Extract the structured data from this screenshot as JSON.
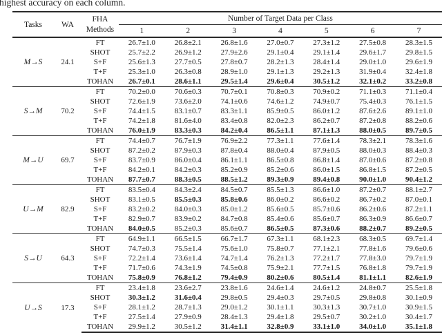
{
  "caption": "highest accuracy on each column.",
  "table": {
    "header": {
      "tasks": "Tasks",
      "wa": "WA",
      "methods_line1": "FHA",
      "methods_line2": "Methods",
      "span": "Number of Target Data per Class",
      "columns": [
        "1",
        "2",
        "3",
        "4",
        "5",
        "6",
        "7"
      ]
    },
    "groups": [
      {
        "task": "M→S",
        "wa": "24.1",
        "rows": [
          {
            "method": "FT",
            "values": [
              "26.7±1.0",
              "26.8±2.1",
              "26.8±1.6",
              "27.0±0.7",
              "27.3±1.2",
              "27.5±0.8",
              "28.3±1.5"
            ],
            "bold": [
              0,
              0,
              0,
              0,
              0,
              0,
              0
            ]
          },
          {
            "method": "SHOT",
            "values": [
              "25.7±2.2",
              "26.9±1.2",
              "27.9±2.6",
              "29.1±0.4",
              "29.1±1.4",
              "29.6±1.7",
              "29.8±1.5"
            ],
            "bold": [
              0,
              0,
              0,
              0,
              0,
              0,
              0
            ]
          },
          {
            "method": "S+F",
            "values": [
              "25.6±1.3",
              "27.7±0.5",
              "27.8±0.7",
              "28.2±1.3",
              "28.4±1.4",
              "29.0±1.0",
              "29.6±1.9"
            ],
            "bold": [
              0,
              0,
              0,
              0,
              0,
              0,
              0
            ]
          },
          {
            "method": "T+F",
            "values": [
              "25.3±1.0",
              "26.3±0.8",
              "28.9±1.0",
              "29.1±1.3",
              "29.2±1.3",
              "31.9±0.4",
              "32.4±1.8"
            ],
            "bold": [
              0,
              0,
              0,
              0,
              0,
              0,
              0
            ]
          },
          {
            "method": "TOHAN",
            "values": [
              "26.7±0.1",
              "28.6±1.1",
              "29.5±1.4",
              "29.6±0.4",
              "30.5±1.2",
              "32.1±0.2",
              "33.2±0.8"
            ],
            "bold": [
              1,
              1,
              1,
              1,
              1,
              1,
              1
            ]
          }
        ]
      },
      {
        "task": "S→M",
        "wa": "70.2",
        "rows": [
          {
            "method": "FT",
            "values": [
              "70.2±0.0",
              "70.6±0.3",
              "70.7±0.1",
              "70.8±0.3",
              "70.9±0.2",
              "71.1±0.3",
              "71.1±0.4"
            ],
            "bold": [
              0,
              0,
              0,
              0,
              0,
              0,
              0
            ]
          },
          {
            "method": "SHOT",
            "values": [
              "72.6±1.9",
              "73.6±2.0",
              "74.1±0.6",
              "74.6±1.2",
              "74.9±0.7",
              "75.4±0.3",
              "76.1±1.5"
            ],
            "bold": [
              0,
              0,
              0,
              0,
              0,
              0,
              0
            ]
          },
          {
            "method": "S+F",
            "values": [
              "74.4±1.5",
              "83.1±0.7",
              "83.3±1.1",
              "85.9±0.5",
              "86.0±1.2",
              "87.6±2.6",
              "89.1±1.0"
            ],
            "bold": [
              0,
              0,
              0,
              0,
              0,
              0,
              0
            ]
          },
          {
            "method": "T+F",
            "values": [
              "74.2±1.8",
              "81.6±4.0",
              "83.4±0.8",
              "82.0±2.3",
              "86.2±0.7",
              "87.2±0.8",
              "88.2±0.6"
            ],
            "bold": [
              0,
              0,
              0,
              0,
              0,
              0,
              0
            ]
          },
          {
            "method": "TOHAN",
            "values": [
              "76.0±1.9",
              "83.3±0.3",
              "84.2±0.4",
              "86.5±1.1",
              "87.1±1.3",
              "88.0±0.5",
              "89.7±0.5"
            ],
            "bold": [
              1,
              1,
              1,
              1,
              1,
              1,
              1
            ]
          }
        ]
      },
      {
        "task": "M→U",
        "wa": "69.7",
        "rows": [
          {
            "method": "FT",
            "values": [
              "74.4±0.7",
              "76.7±1.9",
              "76.9±2.2",
              "77.3±1.1",
              "77.6±1.4",
              "78.3±2.1",
              "78.3±1.6"
            ],
            "bold": [
              0,
              0,
              0,
              0,
              0,
              0,
              0
            ]
          },
          {
            "method": "SHOT",
            "values": [
              "87.2±0.2",
              "87.9±0.3",
              "87.8±0.4",
              "88.0±0.4",
              "87.9±0.5",
              "88.0±0.3",
              "88.4±0.3"
            ],
            "bold": [
              0,
              0,
              0,
              0,
              0,
              0,
              0
            ]
          },
          {
            "method": "S+F",
            "values": [
              "83.7±0.9",
              "86.0±0.4",
              "86.1±1.1",
              "86.5±0.8",
              "86.8±1.4",
              "87.0±0.6",
              "87.2±0.8"
            ],
            "bold": [
              0,
              0,
              0,
              0,
              0,
              0,
              0
            ]
          },
          {
            "method": "T+F",
            "values": [
              "84.2±0.1",
              "84.2±0.3",
              "85.2±0.9",
              "85.2±0.6",
              "86.0±1.5",
              "86.8±1.5",
              "87.2±0.5"
            ],
            "bold": [
              0,
              0,
              0,
              0,
              0,
              0,
              0
            ]
          },
          {
            "method": "TOHAN",
            "values": [
              "87.7±0.7",
              "88.3±0.5",
              "88.5±1.2",
              "89.3±0.9",
              "89.4±0.8",
              "90.0±1.0",
              "90.4±1.2"
            ],
            "bold": [
              1,
              1,
              1,
              1,
              1,
              1,
              1
            ]
          }
        ]
      },
      {
        "task": "U→M",
        "wa": "82.9",
        "rows": [
          {
            "method": "FT",
            "values": [
              "83.5±0.4",
              "84.3±2.4",
              "84.5±0.7",
              "85.5±1.3",
              "86.6±1.0",
              "87.2±0.7",
              "88.1±2.7"
            ],
            "bold": [
              0,
              0,
              0,
              0,
              0,
              0,
              0
            ]
          },
          {
            "method": "SHOT",
            "values": [
              "83.1±0.5",
              "85.5±0.3",
              "85.8±0.6",
              "86.0±0.2",
              "86.6±0.2",
              "86.7±0.2",
              "87.0±0.1"
            ],
            "bold": [
              0,
              1,
              1,
              0,
              0,
              0,
              0
            ]
          },
          {
            "method": "S+F",
            "values": [
              "83.2±0.2",
              "84.0±0.3",
              "85.0±1.2",
              "85.6±0.5",
              "85.7±0.6",
              "86.2±0.6",
              "87.2±1.1"
            ],
            "bold": [
              0,
              0,
              0,
              0,
              0,
              0,
              0
            ]
          },
          {
            "method": "T+F",
            "values": [
              "82.9±0.7",
              "83.9±0.2",
              "84.7±0.8",
              "85.4±0.6",
              "85.6±0.7",
              "86.3±0.9",
              "86.6±0.7"
            ],
            "bold": [
              0,
              0,
              0,
              0,
              0,
              0,
              0
            ]
          },
          {
            "method": "TOHAN",
            "values": [
              "84.0±0.5",
              "85.2±0.3",
              "85.6±0.7",
              "86.5±0.5",
              "87.3±0.6",
              "88.2±0.7",
              "89.2±0.5"
            ],
            "bold": [
              1,
              0,
              0,
              1,
              1,
              1,
              1
            ]
          }
        ]
      },
      {
        "task": "S→U",
        "wa": "64.3",
        "rows": [
          {
            "method": "FT",
            "values": [
              "64.9±1.1",
              "66.5±1.5",
              "66.7±1.7",
              "67.3±1.1",
              "68.1±2.3",
              "68.3±0.5",
              "69.7±1.4"
            ],
            "bold": [
              0,
              0,
              0,
              0,
              0,
              0,
              0
            ]
          },
          {
            "method": "SHOT",
            "values": [
              "74.7±0.3",
              "75.5±1.4",
              "75.6±1.0",
              "75.8±0.7",
              "77.1±2.1",
              "77.8±1.6",
              "79.6±0.6"
            ],
            "bold": [
              0,
              0,
              0,
              0,
              0,
              0,
              0
            ]
          },
          {
            "method": "S+F",
            "values": [
              "72.2±1.4",
              "73.6±1.4",
              "74.7±1.4",
              "76.2±1.3",
              "77.2±1.7",
              "77.8±3.0",
              "79.7±1.9"
            ],
            "bold": [
              0,
              0,
              0,
              0,
              0,
              0,
              0
            ]
          },
          {
            "method": "T+F",
            "values": [
              "71.7±0.6",
              "74.3±1.9",
              "74.5±0.8",
              "75.9±2.1",
              "77.7±1.5",
              "76.8±1.8",
              "79.7±1.9"
            ],
            "bold": [
              0,
              0,
              0,
              0,
              0,
              0,
              0
            ]
          },
          {
            "method": "TOHAN",
            "values": [
              "75.8±0.9",
              "76.8±1.2",
              "79.4±0.9",
              "80.2±0.6",
              "80.5±1.4",
              "81.1±1.1",
              "82.6±1.9"
            ],
            "bold": [
              1,
              1,
              1,
              1,
              1,
              1,
              1
            ]
          }
        ]
      },
      {
        "task": "U→S",
        "wa": "17.3",
        "rows": [
          {
            "method": "FT",
            "values": [
              "23.4±1.8",
              "23.6±2.7",
              "23.8±1.6",
              "24.6±1.4",
              "24.6±1.2",
              "24.8±0.7",
              "25.5±1.8"
            ],
            "bold": [
              0,
              0,
              0,
              0,
              0,
              0,
              0
            ]
          },
          {
            "method": "SHOT",
            "values": [
              "30.3±1.2",
              "31.6±0.4",
              "29.8±0.5",
              "29.4±0.3",
              "29.7±0.5",
              "29.8±0.8",
              "30.1±0.9"
            ],
            "bold": [
              1,
              1,
              0,
              0,
              0,
              0,
              0
            ]
          },
          {
            "method": "S+F",
            "values": [
              "28.1±1.2",
              "28.7±1.3",
              "29.0±1.2",
              "30.1±1.1",
              "30.3±1.3",
              "30.7±1.0",
              "30.9±1.5"
            ],
            "bold": [
              0,
              0,
              0,
              0,
              0,
              0,
              0
            ]
          },
          {
            "method": "T+F",
            "values": [
              "27.5±1.4",
              "27.9±0.9",
              "28.4±1.3",
              "29.4±1.8",
              "29.5±0.7",
              "30.2±1.0",
              "30.4±1.7"
            ],
            "bold": [
              0,
              0,
              0,
              0,
              0,
              0,
              0
            ]
          },
          {
            "method": "TOHAN",
            "values": [
              "29.9±1.2",
              "30.5±1.2",
              "31.4±1.1",
              "32.8±0.9",
              "33.1±1.0",
              "34.0±1.0",
              "35.1±1.8"
            ],
            "bold": [
              0,
              0,
              1,
              1,
              1,
              1,
              1
            ]
          }
        ]
      }
    ]
  }
}
